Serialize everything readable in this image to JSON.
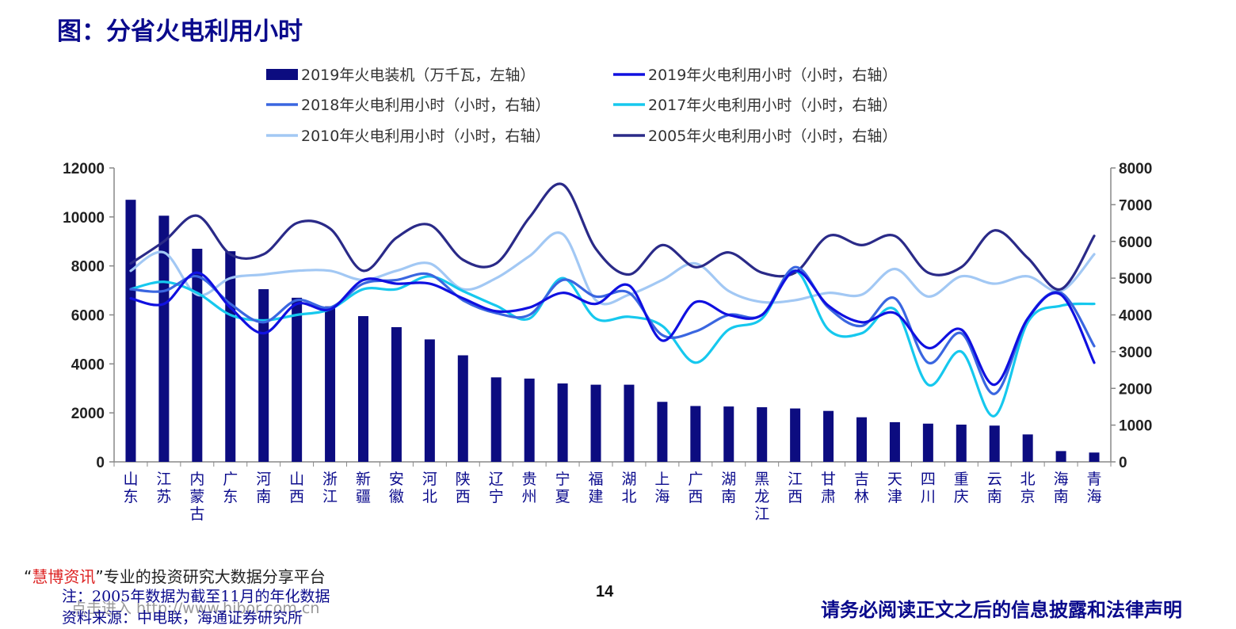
{
  "title": "图：分省火电利用小时",
  "watermark": {
    "brand_open_quote": "“",
    "brand": "慧博资讯",
    "tagline": "”专业的投资研究大数据分享平台",
    "link": "点击进入 http://www.hibor.com.cn"
  },
  "notes": {
    "note": "注：2005年数据为截至11月的年化数据",
    "source": "资料来源：中电联，海通证券研究所"
  },
  "page_number": "14",
  "disclaimer": "请务必阅读正文之后的信息披露和法律声明",
  "colors": {
    "bar": "#0c0c80",
    "s2019": "#1010e0",
    "s2018": "#3a66e0",
    "s2017": "#16c8ee",
    "s2010": "#a2c8f4",
    "s2005": "#2a2a88"
  },
  "chart_data": {
    "type": "bar+line",
    "categories": [
      "山东",
      "江苏",
      "内蒙古",
      "广东",
      "河南",
      "山西",
      "浙江",
      "新疆",
      "安徽",
      "河北",
      "陕西",
      "辽宁",
      "贵州",
      "宁夏",
      "福建",
      "湖北",
      "上海",
      "广西",
      "湖南",
      "黑龙江",
      "江西",
      "甘肃",
      "吉林",
      "天津",
      "四川",
      "重庆",
      "云南",
      "北京",
      "海南",
      "青海"
    ],
    "left_axis": {
      "min": 0,
      "max": 12000,
      "ticks": [
        "0",
        "2000",
        "4000",
        "6000",
        "8000",
        "10000",
        "12000"
      ]
    },
    "right_axis": {
      "min": 0,
      "max": 8000,
      "ticks": [
        "0",
        "1000",
        "2000",
        "3000",
        "4000",
        "5000",
        "6000",
        "7000",
        "8000"
      ]
    },
    "series": [
      {
        "name": "2019年火电装机（万千瓦，左轴）",
        "kind": "bar",
        "axis": "left",
        "color_key": "bar",
        "values": [
          10700,
          10050,
          8700,
          8600,
          7050,
          6700,
          6350,
          5950,
          5500,
          5000,
          4350,
          3450,
          3400,
          3200,
          3150,
          3150,
          2450,
          2280,
          2260,
          2230,
          2180,
          2080,
          1820,
          1620,
          1560,
          1520,
          1480,
          1120,
          440,
          380
        ]
      },
      {
        "name": "2019年火电利用小时（小时，右轴）",
        "kind": "line",
        "axis": "right",
        "color_key": "s2019",
        "values": [
          4450,
          4300,
          5150,
          4200,
          3500,
          4300,
          4150,
          4950,
          4850,
          4850,
          4450,
          4100,
          4200,
          4600,
          4300,
          4800,
          3300,
          4350,
          4000,
          4000,
          5200,
          4250,
          3800,
          4050,
          3100,
          3600,
          2100,
          3900,
          4550,
          2700
        ]
      },
      {
        "name": "2018年火电利用小时（小时，右轴）",
        "kind": "line",
        "axis": "right",
        "color_key": "s2018",
        "values": [
          4700,
          4650,
          5050,
          4300,
          3800,
          4400,
          4200,
          4850,
          4950,
          5100,
          4400,
          4050,
          4000,
          4950,
          4500,
          4600,
          3450,
          3550,
          4000,
          4000,
          5300,
          4200,
          3700,
          4450,
          2700,
          3500,
          1850,
          3900,
          4600,
          3150
        ]
      },
      {
        "name": "2017年火电利用小时（小时，右轴）",
        "kind": "line",
        "axis": "right",
        "color_key": "s2017",
        "values": [
          4700,
          4900,
          4600,
          4000,
          3850,
          4000,
          4150,
          4700,
          4700,
          5050,
          4650,
          4250,
          3900,
          5000,
          3900,
          3950,
          3700,
          2700,
          3600,
          3900,
          5200,
          3600,
          3500,
          4150,
          2100,
          3000,
          1250,
          3800,
          4250,
          4300
        ]
      },
      {
        "name": "2010年火电利用小时（小时，右轴）",
        "kind": "line",
        "axis": "right",
        "color_key": "s2010",
        "values": [
          5200,
          5700,
          4550,
          5000,
          5100,
          5200,
          5200,
          4950,
          5200,
          5400,
          4700,
          5000,
          5600,
          6200,
          4400,
          4550,
          4950,
          5400,
          4650,
          4350,
          4400,
          4600,
          4550,
          5250,
          4500,
          5050,
          4850,
          5050,
          4650,
          5650
        ]
      },
      {
        "name": "2005年火电利用小时（小时，右轴）",
        "kind": "line",
        "axis": "right",
        "color_key": "s2005",
        "values": [
          5400,
          6000,
          6700,
          5650,
          5650,
          6500,
          6350,
          5200,
          6100,
          6450,
          5500,
          5400,
          6650,
          7550,
          5800,
          5100,
          5900,
          5300,
          5700,
          5150,
          5150,
          6150,
          5900,
          6150,
          5150,
          5300,
          6300,
          5550,
          4700,
          6150
        ]
      }
    ]
  }
}
